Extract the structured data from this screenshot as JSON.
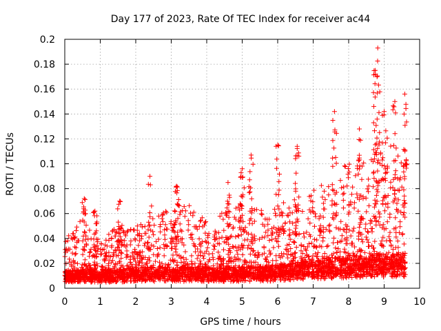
{
  "chart_data": {
    "type": "scatter",
    "title": "Day 177 of 2023, Rate Of TEC Index for receiver ac44",
    "xlabel": "GPS time / hours",
    "ylabel": "ROTI / TECUs",
    "xlim": [
      0,
      10
    ],
    "ylim": [
      0,
      0.2
    ],
    "xticks": [
      0,
      1,
      2,
      3,
      4,
      5,
      6,
      7,
      8,
      9,
      10
    ],
    "xtick_labels": [
      "0",
      "1",
      "2",
      "3",
      "4",
      "5",
      "6",
      "7",
      "8",
      "9",
      "10"
    ],
    "yticks": [
      0,
      0.02,
      0.04,
      0.06,
      0.08,
      0.1,
      0.12,
      0.14,
      0.16,
      0.18,
      0.2
    ],
    "ytick_labels": [
      "0",
      "0.02",
      "0.04",
      "0.06",
      "0.08",
      "0.1",
      "0.12",
      "0.14",
      "0.16",
      "0.18",
      "0.2"
    ],
    "grid": true,
    "marker": "+",
    "color": "#ff0000",
    "x_range_of_data": [
      0,
      9.6
    ],
    "series": [
      {
        "name": "ROTI",
        "envelope_x": [
          0,
          0.5,
          1,
          1.5,
          2,
          2.5,
          3,
          3.5,
          4,
          4.5,
          5,
          5.5,
          6,
          6.5,
          7,
          7.5,
          8,
          8.5,
          8.8,
          9,
          9.3,
          9.6
        ],
        "typical_low": [
          0.008,
          0.008,
          0.008,
          0.008,
          0.009,
          0.009,
          0.009,
          0.009,
          0.009,
          0.009,
          0.009,
          0.009,
          0.01,
          0.011,
          0.012,
          0.013,
          0.014,
          0.015,
          0.015,
          0.015,
          0.015,
          0.015
        ],
        "typical_high": [
          0.035,
          0.05,
          0.035,
          0.045,
          0.045,
          0.05,
          0.06,
          0.06,
          0.05,
          0.055,
          0.06,
          0.06,
          0.06,
          0.065,
          0.07,
          0.08,
          0.09,
          0.1,
          0.11,
          0.12,
          0.11,
          0.1
        ],
        "peaks": [
          {
            "x": 0.55,
            "y": 0.072
          },
          {
            "x": 0.85,
            "y": 0.062
          },
          {
            "x": 1.55,
            "y": 0.07
          },
          {
            "x": 2.4,
            "y": 0.09
          },
          {
            "x": 3.15,
            "y": 0.082
          },
          {
            "x": 4.6,
            "y": 0.085
          },
          {
            "x": 5.0,
            "y": 0.096
          },
          {
            "x": 5.25,
            "y": 0.107
          },
          {
            "x": 6.0,
            "y": 0.115
          },
          {
            "x": 6.55,
            "y": 0.114
          },
          {
            "x": 7.6,
            "y": 0.142
          },
          {
            "x": 8.3,
            "y": 0.128
          },
          {
            "x": 8.75,
            "y": 0.175
          },
          {
            "x": 8.82,
            "y": 0.193
          },
          {
            "x": 9.0,
            "y": 0.142
          },
          {
            "x": 9.3,
            "y": 0.15
          },
          {
            "x": 9.58,
            "y": 0.156
          }
        ]
      }
    ]
  }
}
